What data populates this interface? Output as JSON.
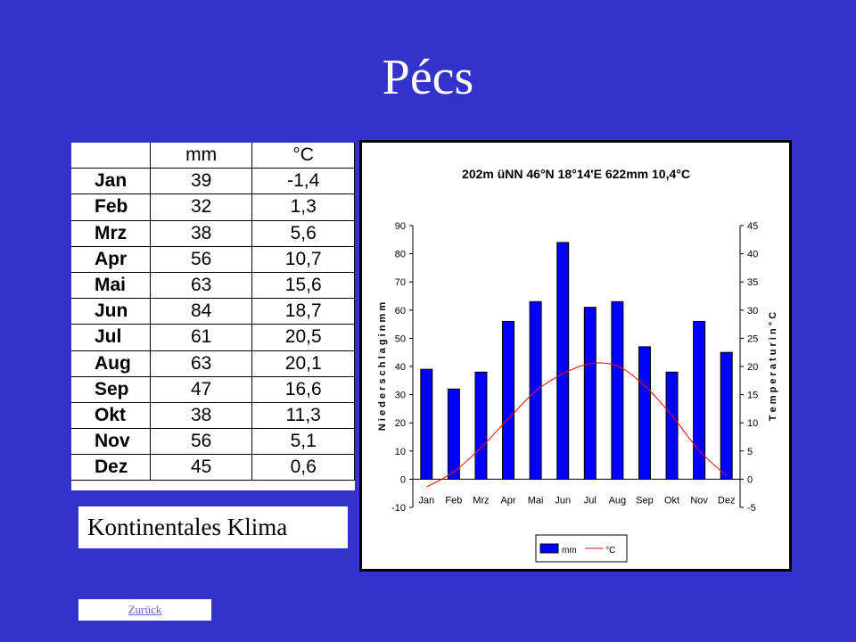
{
  "title": "Pécs",
  "table": {
    "headers": [
      "",
      "mm",
      "°C"
    ],
    "rows": [
      {
        "month": "Jan",
        "mm": "39",
        "c": "-1,4"
      },
      {
        "month": "Feb",
        "mm": "32",
        "c": "1,3"
      },
      {
        "month": "Mrz",
        "mm": "38",
        "c": "5,6"
      },
      {
        "month": "Apr",
        "mm": "56",
        "c": "10,7"
      },
      {
        "month": "Mai",
        "mm": "63",
        "c": "15,6"
      },
      {
        "month": "Jun",
        "mm": "84",
        "c": "18,7"
      },
      {
        "month": "Jul",
        "mm": "61",
        "c": "20,5"
      },
      {
        "month": "Aug",
        "mm": "63",
        "c": "20,1"
      },
      {
        "month": "Sep",
        "mm": "47",
        "c": "16,6"
      },
      {
        "month": "Okt",
        "mm": "38",
        "c": "11,3"
      },
      {
        "month": "Nov",
        "mm": "56",
        "c": "5,1"
      },
      {
        "month": "Dez",
        "mm": "45",
        "c": "0,6"
      }
    ]
  },
  "climate_label": "Kontinentales Klima",
  "back_link": "Zurück",
  "chart_data": {
    "type": "bar",
    "header": "202m üNN      46°N 18°14'E    622mm    10,4°C",
    "categories": [
      "Jan",
      "Feb",
      "Mrz",
      "Apr",
      "Mai",
      "Jun",
      "Jul",
      "Aug",
      "Sep",
      "Okt",
      "Nov",
      "Dez"
    ],
    "series": [
      {
        "name": "mm",
        "type": "bar",
        "axis": "left",
        "color": "#0000ff",
        "values": [
          39,
          32,
          38,
          56,
          63,
          84,
          61,
          63,
          47,
          38,
          56,
          45
        ]
      },
      {
        "name": "°C",
        "type": "line",
        "axis": "right",
        "color": "#ff0000",
        "values": [
          -1.4,
          1.3,
          5.6,
          10.7,
          15.6,
          18.7,
          20.5,
          20.1,
          16.6,
          11.3,
          5.1,
          0.6
        ]
      }
    ],
    "ylabel_left": "N i e d e r s c h l a g   i n   m m",
    "ylabel_right": "T e m p e r a t u r   i n   ° C",
    "ylim_left": [
      -10,
      90
    ],
    "ylim_right": [
      -5,
      45
    ],
    "yticks_left": [
      -10,
      0,
      10,
      20,
      30,
      40,
      50,
      60,
      70,
      80,
      90
    ],
    "yticks_right": [
      -5,
      0,
      5,
      10,
      15,
      20,
      25,
      30,
      35,
      40,
      45
    ],
    "legend_position": "bottom",
    "grid": false
  }
}
